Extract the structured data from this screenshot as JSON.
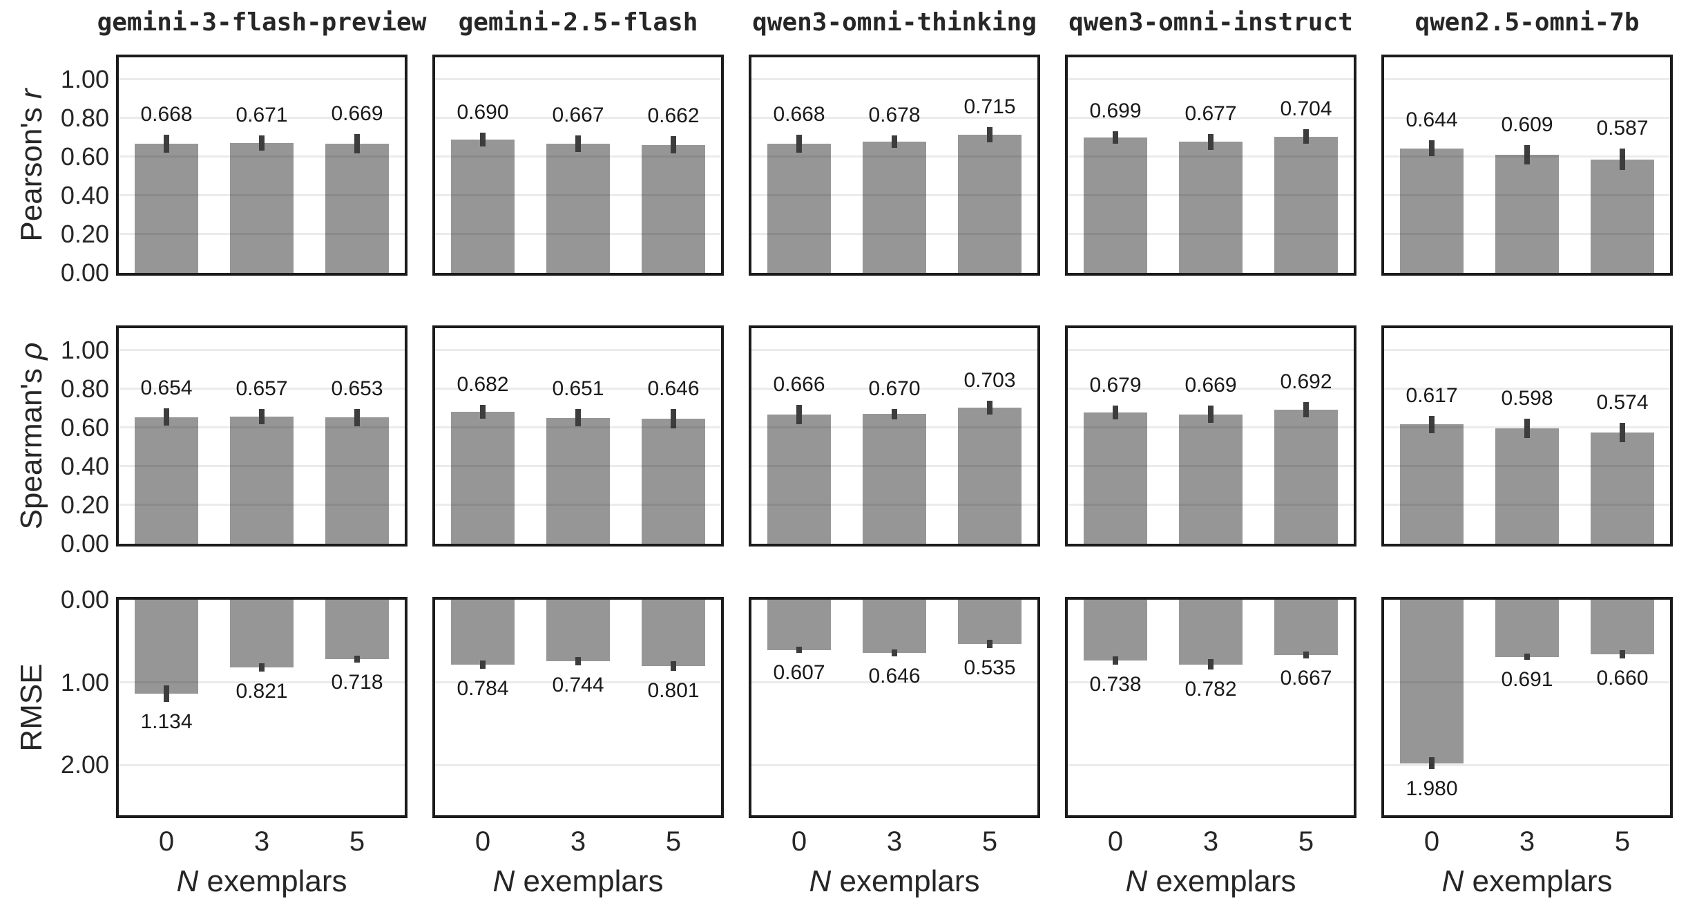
{
  "chart_data": {
    "type": "bar",
    "layout": "grid of 3 metric rows by 5 model columns, bars with error whiskers, value labels on each bar",
    "grid_on": true,
    "legend": "none",
    "bar_color": "#969696",
    "error_bar_color": "#3d3d3d",
    "spine_color": "#1b1b1b",
    "grid_color": "rgba(0,0,0,0.08)",
    "columns": [
      "gemini-3-flash-preview",
      "gemini-2.5-flash",
      "qwen3-omni-thinking",
      "qwen3-omni-instruct",
      "qwen2.5-omni-7b"
    ],
    "x": {
      "categories": [
        "0",
        "3",
        "5"
      ],
      "label_parts": [
        {
          "text": "N",
          "italic": true
        },
        {
          "text": " exemplars",
          "italic": false
        }
      ]
    },
    "rows": [
      {
        "metric": "pearson_r",
        "label_parts": [
          {
            "text": "Pearson's ",
            "italic": false
          },
          {
            "text": "r",
            "italic": true
          }
        ],
        "ylim": [
          0,
          1.114
        ],
        "inverted": false,
        "yticks": [
          {
            "v": 1.0,
            "label": "1.00"
          },
          {
            "v": 0.8,
            "label": "0.80"
          },
          {
            "v": 0.6,
            "label": "0.60"
          },
          {
            "v": 0.4,
            "label": "0.40"
          },
          {
            "v": 0.2,
            "label": "0.20"
          },
          {
            "v": 0.0,
            "label": "0.00"
          }
        ],
        "gridlines": [
          0.2,
          0.4,
          0.6,
          0.8,
          1.0
        ],
        "series": [
          {
            "model": "gemini-3-flash-preview",
            "values": [
              "0.668",
              "0.671",
              "0.669"
            ],
            "errors": [
              0.045,
              0.038,
              0.05
            ]
          },
          {
            "model": "gemini-2.5-flash",
            "values": [
              "0.690",
              "0.667",
              "0.662"
            ],
            "errors": [
              0.035,
              0.042,
              0.045
            ]
          },
          {
            "model": "qwen3-omni-thinking",
            "values": [
              "0.668",
              "0.678",
              "0.715"
            ],
            "errors": [
              0.045,
              0.032,
              0.04
            ]
          },
          {
            "model": "qwen3-omni-instruct",
            "values": [
              "0.699",
              "0.677",
              "0.704"
            ],
            "errors": [
              0.032,
              0.04,
              0.038
            ]
          },
          {
            "model": "qwen2.5-omni-7b",
            "values": [
              "0.644",
              "0.609",
              "0.587"
            ],
            "errors": [
              0.04,
              0.05,
              0.055
            ]
          }
        ]
      },
      {
        "metric": "spearman_rho",
        "label_parts": [
          {
            "text": "Spearman's ",
            "italic": false
          },
          {
            "text": "ρ",
            "italic": true
          }
        ],
        "ylim": [
          0,
          1.114
        ],
        "inverted": false,
        "yticks": [
          {
            "v": 1.0,
            "label": "1.00"
          },
          {
            "v": 0.8,
            "label": "0.80"
          },
          {
            "v": 0.6,
            "label": "0.60"
          },
          {
            "v": 0.4,
            "label": "0.40"
          },
          {
            "v": 0.2,
            "label": "0.20"
          },
          {
            "v": 0.0,
            "label": "0.00"
          }
        ],
        "gridlines": [
          0.2,
          0.4,
          0.6,
          0.8,
          1.0
        ],
        "series": [
          {
            "model": "gemini-3-flash-preview",
            "values": [
              "0.654",
              "0.657",
              "0.653"
            ],
            "errors": [
              0.045,
              0.04,
              0.045
            ]
          },
          {
            "model": "gemini-2.5-flash",
            "values": [
              "0.682",
              "0.651",
              "0.646"
            ],
            "errors": [
              0.035,
              0.045,
              0.05
            ]
          },
          {
            "model": "qwen3-omni-thinking",
            "values": [
              "0.666",
              "0.670",
              "0.703"
            ],
            "errors": [
              0.05,
              0.028,
              0.035
            ]
          },
          {
            "model": "qwen3-omni-instruct",
            "values": [
              "0.679",
              "0.669",
              "0.692"
            ],
            "errors": [
              0.035,
              0.045,
              0.04
            ]
          },
          {
            "model": "qwen2.5-omni-7b",
            "values": [
              "0.617",
              "0.598",
              "0.574"
            ],
            "errors": [
              0.045,
              0.05,
              0.05
            ]
          }
        ]
      },
      {
        "metric": "rmse",
        "label_parts": [
          {
            "text": "RMSE",
            "italic": false
          }
        ],
        "ylim": [
          0,
          2.609
        ],
        "inverted": true,
        "yticks": [
          {
            "v": 0.0,
            "label": "0.00"
          },
          {
            "v": 1.0,
            "label": "1.00"
          },
          {
            "v": 2.0,
            "label": "2.00"
          }
        ],
        "gridlines": [
          1.0,
          2.0
        ],
        "series": [
          {
            "model": "gemini-3-flash-preview",
            "values": [
              "1.134",
              "0.821",
              "0.718"
            ],
            "errors": [
              0.1,
              0.05,
              0.04
            ]
          },
          {
            "model": "gemini-2.5-flash",
            "values": [
              "0.784",
              "0.744",
              "0.801"
            ],
            "errors": [
              0.05,
              0.05,
              0.06
            ]
          },
          {
            "model": "qwen3-omni-thinking",
            "values": [
              "0.607",
              "0.646",
              "0.535"
            ],
            "errors": [
              0.04,
              0.04,
              0.05
            ]
          },
          {
            "model": "qwen3-omni-instruct",
            "values": [
              "0.738",
              "0.782",
              "0.667"
            ],
            "errors": [
              0.05,
              0.06,
              0.04
            ]
          },
          {
            "model": "qwen2.5-omni-7b",
            "values": [
              "1.980",
              "0.691",
              "0.660"
            ],
            "errors": [
              0.07,
              0.04,
              0.05
            ]
          }
        ]
      }
    ]
  }
}
